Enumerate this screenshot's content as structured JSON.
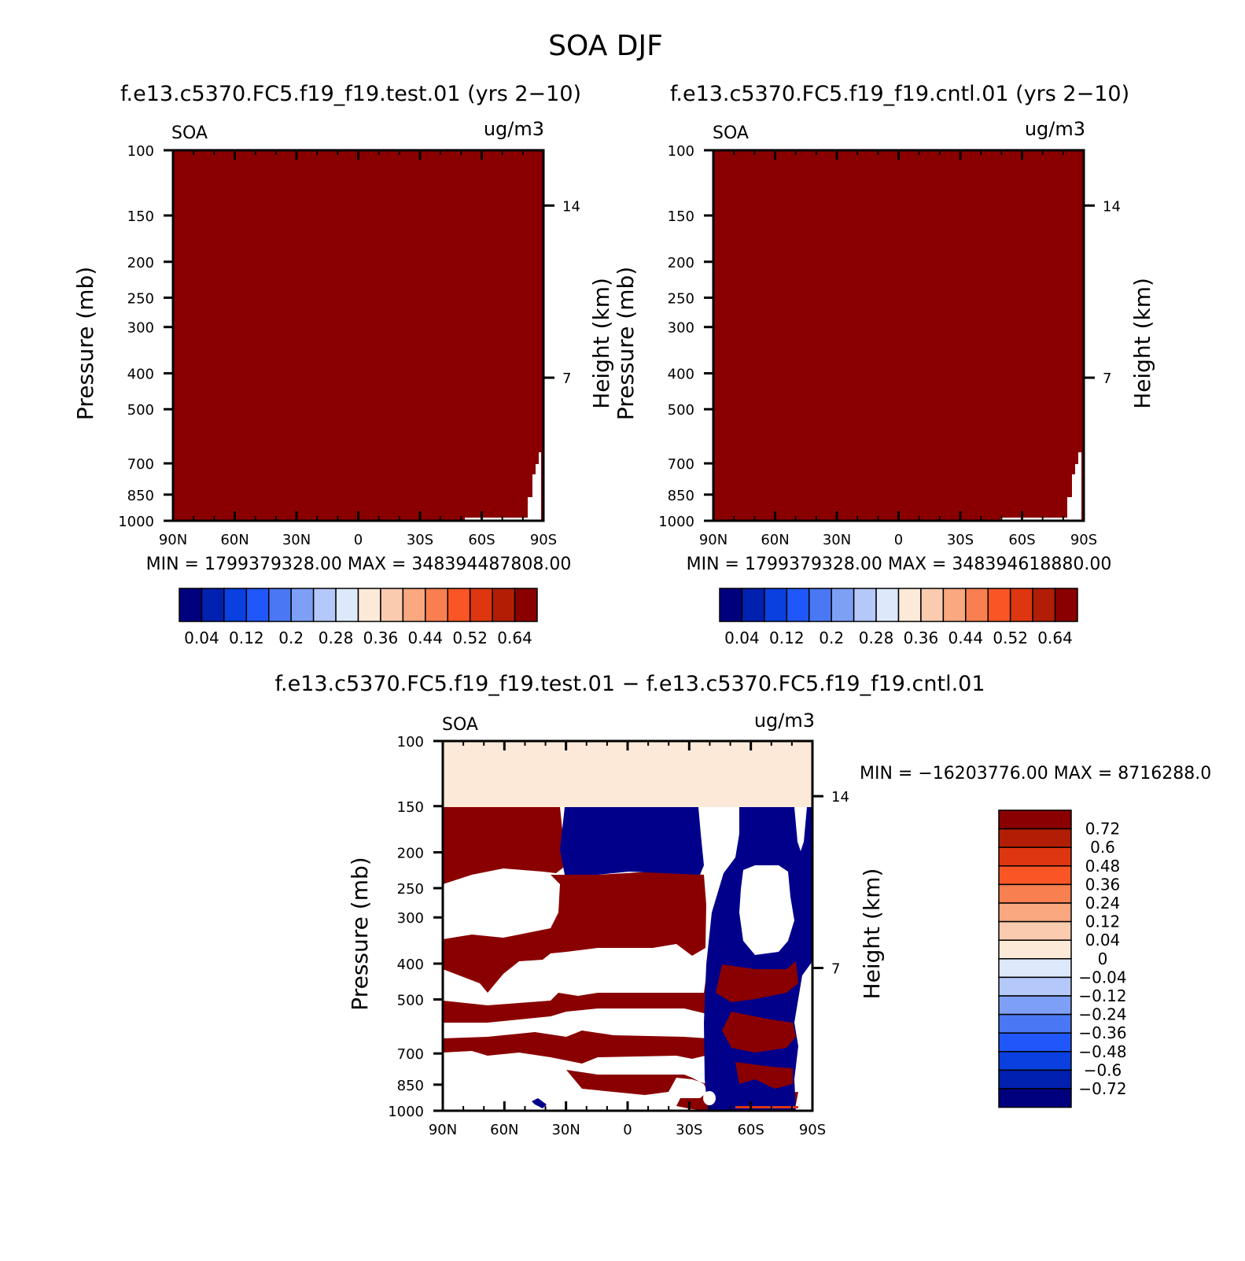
{
  "figure": {
    "title": "SOA DJF"
  },
  "chart_data": [
    {
      "type": "heatmap",
      "title": "f.e13.c5370.FC5.f19_f19.test.01 (yrs 2−10)",
      "variable": "SOA",
      "units": "ug/m3",
      "ylabel": "Pressure (mb)",
      "ylabel_right": "Height (km)",
      "x_ticks": [
        "90N",
        "60N",
        "30N",
        "0",
        "30S",
        "60S",
        "90S"
      ],
      "y_ticks": [
        "100",
        "150",
        "200",
        "250",
        "300",
        "400",
        "500",
        "700",
        "850",
        "1000"
      ],
      "y_right_ticks": [
        "14",
        "7"
      ],
      "min_max": "MIN = 1799379328.00   MAX = 348394487808.00",
      "colorbar_labels": [
        "0.04",
        "0.12",
        "0.2",
        "0.28",
        "0.36",
        "0.44",
        "0.52",
        "0.64"
      ],
      "field_description": "entire domain above max level (0.64+)"
    },
    {
      "type": "heatmap",
      "title": "f.e13.c5370.FC5.f19_f19.cntl.01 (yrs 2−10)",
      "variable": "SOA",
      "units": "ug/m3",
      "ylabel": "Pressure (mb)",
      "ylabel_right": "Height (km)",
      "x_ticks": [
        "90N",
        "60N",
        "30N",
        "0",
        "30S",
        "60S",
        "90S"
      ],
      "y_ticks": [
        "100",
        "150",
        "200",
        "250",
        "300",
        "400",
        "500",
        "700",
        "850",
        "1000"
      ],
      "y_right_ticks": [
        "14",
        "7"
      ],
      "min_max": "MIN = 1799379328.00   MAX = 348394618880.00",
      "colorbar_labels": [
        "0.04",
        "0.12",
        "0.2",
        "0.28",
        "0.36",
        "0.44",
        "0.52",
        "0.64"
      ],
      "field_description": "entire domain above max level (0.64+)"
    },
    {
      "type": "heatmap",
      "title": "f.e13.c5370.FC5.f19_f19.test.01 − f.e13.c5370.FC5.f19_f19.cntl.01",
      "variable": "SOA",
      "units": "ug/m3",
      "ylabel": "Pressure (mb)",
      "ylabel_right": "Height (km)",
      "x_ticks": [
        "90N",
        "60N",
        "30N",
        "0",
        "30S",
        "60S",
        "90S"
      ],
      "y_ticks": [
        "100",
        "150",
        "200",
        "250",
        "300",
        "400",
        "500",
        "700",
        "850",
        "1000"
      ],
      "y_right_ticks": [
        "14",
        "7"
      ],
      "min_max": "MIN = −16203776.00   MAX = 8716288.0",
      "colorbar_labels": [
        "0.72",
        "0.6",
        "0.48",
        "0.36",
        "0.24",
        "0.12",
        "0.04",
        "0",
        "−0.04",
        "−0.12",
        "−0.24",
        "−0.36",
        "−0.48",
        "−0.6",
        "−0.72"
      ]
    }
  ],
  "colors": {
    "abs_scale": [
      "#00007f",
      "#0020b0",
      "#0a3fe0",
      "#2057fa",
      "#4a78f4",
      "#7e9ff6",
      "#b4c8fa",
      "#dde9fb",
      "#fde9d8",
      "#fbcbb0",
      "#f9a880",
      "#f87f50",
      "#f95525",
      "#de3610",
      "#b11e05",
      "#8a0000"
    ],
    "diff_scale": [
      "#8a0000",
      "#b11e05",
      "#de3610",
      "#f95525",
      "#f87f50",
      "#f9a880",
      "#fbcbb0",
      "#fde9d8",
      "#dde9fb",
      "#b4c8fa",
      "#7e9ff6",
      "#4a78f4",
      "#2057fa",
      "#0a3fe0",
      "#0020b0",
      "#00007f"
    ],
    "dark_red": "#8a0000",
    "navy": "#00008b",
    "peach": "#fde9d8"
  }
}
